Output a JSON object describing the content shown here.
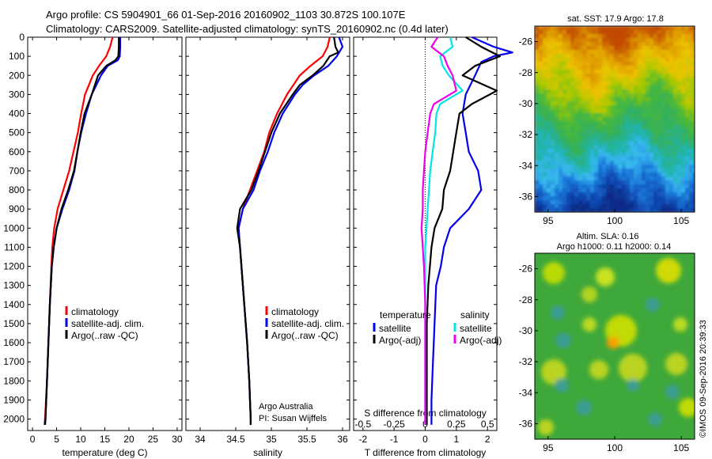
{
  "header": {
    "line1": "Argo profile: CS 5904901_66 01-Sep-2016 20160902_1103 30.872S 100.107E",
    "line2": "Climatology: CARS2009. Satellite-adjusted climatology: synTS_20160902.nc (0.4d later)"
  },
  "colors": {
    "climatology": "#ff0000",
    "satellite": "#0000ee",
    "argo": "#000000",
    "sat_salinity": "#00e5e5",
    "argo_salinity": "#ee00ee"
  },
  "chart_data": [
    {
      "type": "line",
      "xlabel": "temperature (deg C)",
      "ylabel": "",
      "xlim": [
        -1,
        31
      ],
      "ylim": [
        2060,
        0
      ],
      "xticks": [
        "0",
        "5",
        "10",
        "15",
        "20",
        "25",
        "30"
      ],
      "yticks": [
        "0",
        "100",
        "200",
        "300",
        "400",
        "500",
        "600",
        "700",
        "800",
        "900",
        "1000",
        "1100",
        "1200",
        "1300",
        "1400",
        "1500",
        "1600",
        "1700",
        "1800",
        "1900",
        "2000"
      ],
      "legend": [
        "climatology",
        "satellite-adj. clim.",
        "Argo(..raw -QC)"
      ],
      "series": [
        {
          "name": "climatology",
          "depth": [
            0,
            50,
            100,
            150,
            200,
            300,
            400,
            500,
            600,
            700,
            800,
            900,
            1000,
            1100,
            1200,
            1400,
            1600,
            1800,
            2000,
            2030
          ],
          "values": [
            16.6,
            16.1,
            15.3,
            13.8,
            12.5,
            10.9,
            10.1,
            9.4,
            8.5,
            7.6,
            6.4,
            5.2,
            4.5,
            4.1,
            3.9,
            3.6,
            3.3,
            3.0,
            2.6,
            2.5
          ]
        },
        {
          "name": "satellite-adj. clim.",
          "depth": [
            0,
            50,
            100,
            120,
            150,
            200,
            300,
            400,
            500,
            600,
            700,
            800,
            900,
            1000,
            1100,
            1200,
            1400,
            1600,
            1800,
            2000,
            2030
          ],
          "values": [
            18.2,
            18.2,
            18.1,
            17.7,
            15.6,
            14.2,
            12.3,
            11.1,
            10.1,
            9.3,
            8.7,
            7.6,
            6.2,
            5.0,
            4.4,
            4.0,
            3.6,
            3.3,
            3.0,
            2.7,
            2.6
          ]
        },
        {
          "name": "Argo(..raw -QC)",
          "depth": [
            0,
            50,
            100,
            120,
            150,
            200,
            300,
            400,
            500,
            600,
            700,
            800,
            900,
            1000,
            1100,
            1200,
            1400,
            1600,
            1800,
            2000,
            2030
          ],
          "values": [
            17.9,
            17.9,
            17.8,
            17.2,
            15.3,
            13.6,
            12.3,
            10.8,
            10.0,
            9.3,
            8.6,
            7.4,
            6.0,
            5.0,
            4.4,
            4.0,
            3.6,
            3.3,
            3.0,
            2.7,
            2.6
          ]
        }
      ]
    },
    {
      "type": "line",
      "xlabel": "salinity",
      "ylabel": "",
      "xlim": [
        33.8,
        36.1
      ],
      "ylim": [
        2060,
        0
      ],
      "xticks": [
        "34",
        "34.5",
        "35",
        "35.5",
        "36"
      ],
      "legend": [
        "climatology",
        "satellite-adj. clim.",
        "Argo(..raw -QC)"
      ],
      "annotation": [
        "Argo Australia",
        "PI: Susan Wijffels"
      ],
      "series": [
        {
          "name": "climatology",
          "depth": [
            0,
            50,
            100,
            150,
            200,
            300,
            400,
            500,
            600,
            700,
            800,
            900,
            1000,
            1100,
            1200,
            1400,
            1600,
            1800,
            2000,
            2030
          ],
          "values": [
            35.82,
            35.79,
            35.72,
            35.55,
            35.4,
            35.22,
            35.08,
            34.97,
            34.9,
            34.8,
            34.7,
            34.6,
            34.54,
            34.56,
            34.58,
            34.62,
            34.66,
            34.69,
            34.71,
            34.71
          ]
        },
        {
          "name": "satellite-adj. clim.",
          "depth": [
            0,
            50,
            100,
            150,
            200,
            250,
            300,
            400,
            500,
            600,
            700,
            800,
            900,
            1000,
            1100,
            1200,
            1400,
            1600,
            1800,
            2000,
            2030
          ],
          "values": [
            35.95,
            36.0,
            35.92,
            35.8,
            35.6,
            35.44,
            35.33,
            35.16,
            35.04,
            34.95,
            34.84,
            34.75,
            34.6,
            34.54,
            34.56,
            34.58,
            34.62,
            34.66,
            34.69,
            34.71,
            34.71
          ]
        },
        {
          "name": "Argo(..raw -QC)",
          "depth": [
            0,
            50,
            80,
            100,
            150,
            200,
            250,
            300,
            400,
            500,
            600,
            700,
            800,
            900,
            1000,
            1100,
            1200,
            1400,
            1600,
            1800,
            2000,
            2030
          ],
          "values": [
            35.88,
            35.9,
            35.94,
            35.82,
            35.73,
            35.58,
            35.4,
            35.3,
            35.12,
            35.0,
            34.91,
            34.82,
            34.72,
            34.56,
            34.52,
            34.56,
            34.58,
            34.62,
            34.66,
            34.69,
            34.71,
            34.71
          ]
        }
      ]
    },
    {
      "type": "line",
      "xlabel": "T difference from climatology",
      "xlabel_top": "S difference from climatology",
      "xlim": [
        -2.3,
        2.3
      ],
      "ylim": [
        2060,
        0
      ],
      "xticks": [
        "-2",
        "-1",
        "0",
        "1",
        "2"
      ],
      "xticks_top": [
        "-0.5",
        "-0.25",
        "0",
        "0.25",
        "0.5"
      ],
      "legend_titles": [
        "temperature",
        "salinity"
      ],
      "legend": [
        "satellite",
        "Argo(-adj)",
        "satellite",
        "Argo(-adj)"
      ],
      "series": [
        {
          "name": "satellite",
          "group": "temperature",
          "depth": [
            0,
            50,
            80,
            100,
            130,
            200,
            300,
            400,
            500,
            600,
            700,
            800,
            900,
            1000,
            1100,
            1200,
            1300,
            1500,
            1700,
            1900,
            2030
          ],
          "values": [
            1.5,
            2.2,
            2.8,
            2.2,
            1.8,
            1.6,
            1.3,
            1.2,
            1.3,
            1.4,
            1.7,
            1.8,
            1.4,
            0.8,
            0.6,
            0.5,
            0.35,
            0.3,
            0.25,
            0.2,
            0.2
          ]
        },
        {
          "name": "Argo(-adj)",
          "group": "temperature",
          "depth": [
            0,
            50,
            100,
            150,
            200,
            280,
            350,
            400,
            500,
            600,
            700,
            800,
            900,
            1000,
            1100,
            1200,
            1300,
            1500,
            1700,
            1900,
            2030
          ],
          "values": [
            1.3,
            1.8,
            2.4,
            1.6,
            1.2,
            2.3,
            1.5,
            1.1,
            1.0,
            0.9,
            0.8,
            0.6,
            0.55,
            0.3,
            0.2,
            0.15,
            0.1,
            0.05,
            0.05,
            0.05,
            0.05
          ]
        },
        {
          "name": "satellite",
          "group": "salinity",
          "depth": [
            0,
            50,
            100,
            150,
            200,
            280,
            350,
            400,
            500,
            600,
            700,
            800,
            900,
            1000,
            1100,
            1200,
            1400,
            1600,
            1800,
            2000,
            2030
          ],
          "values": [
            0.2,
            0.22,
            0.12,
            0.14,
            0.19,
            0.3,
            0.12,
            0.09,
            0.08,
            0.06,
            0.04,
            0.03,
            0.02,
            0.01,
            0.0,
            0.0,
            0.0,
            0.0,
            0.0,
            0.0,
            0.0
          ]
        },
        {
          "name": "Argo(-adj)",
          "group": "salinity",
          "depth": [
            0,
            50,
            100,
            150,
            200,
            280,
            350,
            400,
            500,
            600,
            700,
            800,
            900,
            1000,
            1100,
            1200,
            1400,
            1600,
            1800,
            2000,
            2030
          ],
          "values": [
            0.1,
            0.05,
            0.15,
            0.18,
            0.22,
            0.25,
            0.07,
            0.04,
            0.02,
            0.0,
            -0.01,
            -0.02,
            -0.02,
            -0.03,
            -0.02,
            -0.01,
            0.0,
            0.0,
            0.0,
            0.0,
            0.0
          ]
        }
      ]
    },
    {
      "type": "heatmap",
      "title": "sat. SST: 17.9  Argo: 17.8",
      "xlim": [
        94,
        106
      ],
      "ylim": [
        -37,
        -25
      ],
      "xticks": [
        "95",
        "100",
        "105"
      ],
      "yticks": [
        "-26",
        "-28",
        "-30",
        "-32",
        "-34",
        "-36"
      ]
    },
    {
      "type": "heatmap",
      "title_lines": [
        "Altim. SLA: 0.16",
        "Argo h1000: 0.11  h2000: 0.14"
      ],
      "xlim": [
        94,
        106
      ],
      "ylim": [
        -37,
        -25
      ],
      "xticks": [
        "95",
        "100",
        "105"
      ],
      "yticks": [
        "-26",
        "-28",
        "-30",
        "-32",
        "-34",
        "-36"
      ],
      "side_label": "©IMOS 09-Sep-2016 20:39:33"
    }
  ]
}
